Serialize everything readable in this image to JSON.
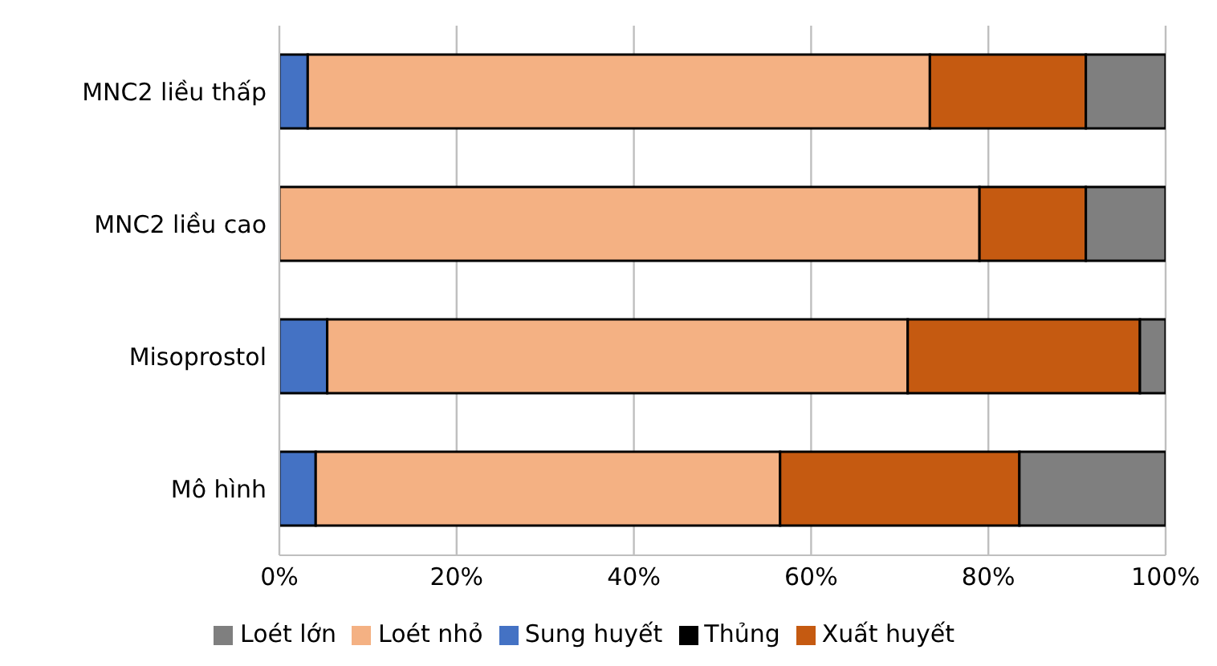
{
  "chart_data": {
    "type": "bar",
    "orientation": "horizontal",
    "stacked": true,
    "categories": [
      "MNC2 liều thấp",
      "MNC2 liều cao",
      "Misoprostol",
      "Mô hình"
    ],
    "series": [
      {
        "name": "Sung huyết",
        "color": "#4472c4",
        "values": [
          3.2,
          0,
          5.4,
          4.1
        ]
      },
      {
        "name": "Loét nhỏ",
        "color": "#f4b183",
        "values": [
          70.2,
          79.0,
          65.5,
          52.4
        ]
      },
      {
        "name": "Xuất huyết",
        "color": "#c55a11",
        "values": [
          17.6,
          12.0,
          26.2,
          27.0
        ]
      },
      {
        "name": "Loét lớn",
        "color": "#7f7f7f",
        "values": [
          9.0,
          9.0,
          2.9,
          16.5
        ]
      },
      {
        "name": "Thủng",
        "color": "#000000",
        "values": [
          0,
          0,
          0,
          0
        ]
      }
    ],
    "xlim": [
      0,
      100
    ],
    "xticks": [
      {
        "value": 0,
        "label": "0%"
      },
      {
        "value": 20,
        "label": "20%"
      },
      {
        "value": 40,
        "label": "40%"
      },
      {
        "value": 60,
        "label": "60%"
      },
      {
        "value": 80,
        "label": "80%"
      },
      {
        "value": 100,
        "label": "100%"
      }
    ],
    "grid": "x",
    "legend": "bottom"
  }
}
